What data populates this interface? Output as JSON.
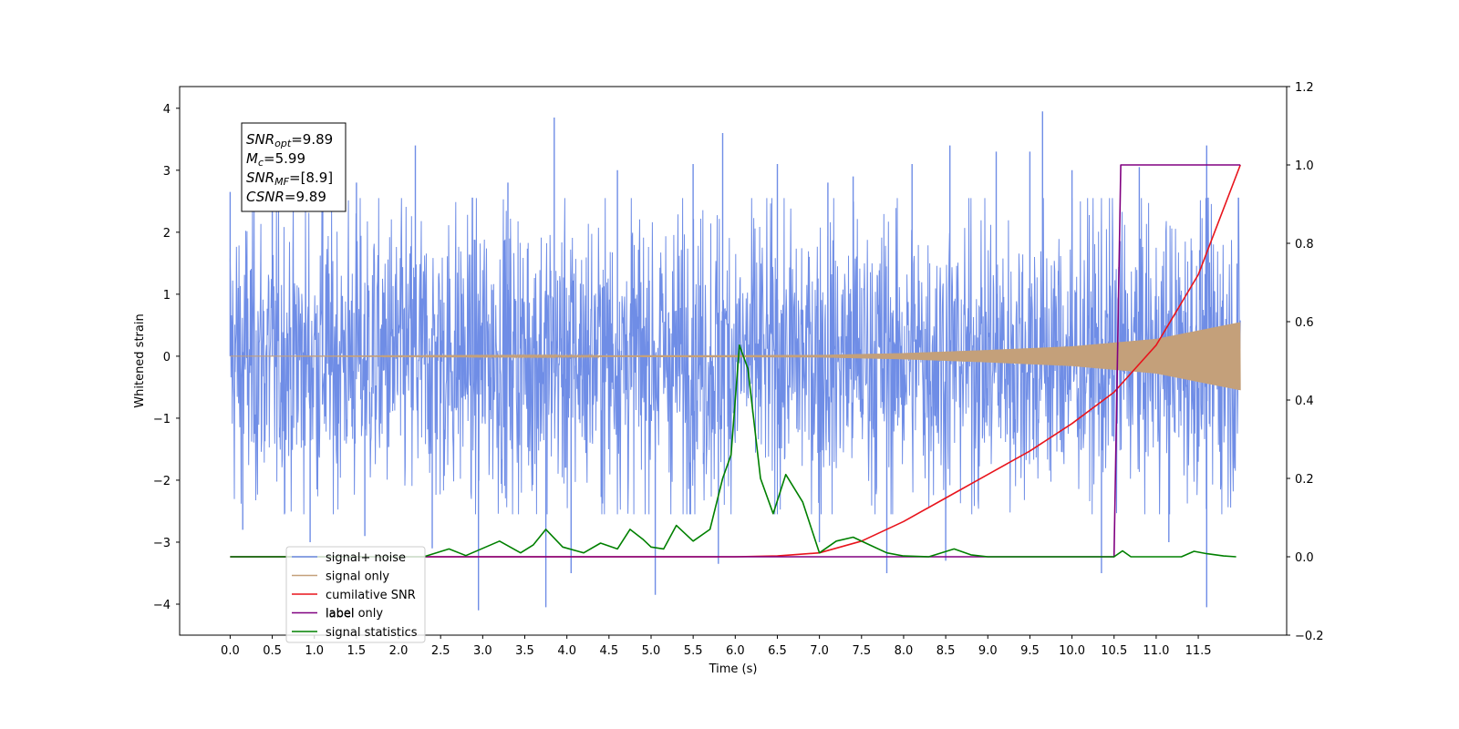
{
  "chart_data": {
    "type": "line",
    "xlabel": "Time (s)",
    "ylabel": "Whitened strain",
    "xlim": [
      -0.6,
      12.55
    ],
    "ylim": [
      -4.5,
      4.35
    ],
    "y2lim": [
      -0.2,
      1.2
    ],
    "x_ticks": [
      "0.0",
      "0.5",
      "1.0",
      "1.5",
      "2.0",
      "2.5",
      "3.0",
      "3.5",
      "4.0",
      "4.5",
      "5.0",
      "5.5",
      "6.0",
      "6.5",
      "7.0",
      "7.5",
      "8.0",
      "8.5",
      "9.0",
      "9.5",
      "10.0",
      "10.5",
      "11.0",
      "11.5"
    ],
    "y_ticks": [
      "4",
      "3",
      "2",
      "1",
      "0",
      "−1",
      "−2",
      "−3",
      "−4"
    ],
    "y2_ticks": [
      "1.2",
      "1.0",
      "0.8",
      "0.6",
      "0.4",
      "0.2",
      "0.0",
      "−0.2"
    ],
    "grid": false,
    "legend_position": "lower-left",
    "annotation": {
      "lines": [
        {
          "sym": "SNR",
          "sub": "opt",
          "value": "=9.89"
        },
        {
          "sym": "M",
          "sub": "c",
          "value": "=5.99"
        },
        {
          "sym": "SNR",
          "sub": "MF",
          "value": "=[8.9]"
        },
        {
          "sym": "CSNR",
          "sub": "",
          "value": "=9.89"
        }
      ]
    },
    "series": [
      {
        "name": "signal+ noise",
        "color": "#6f8de6",
        "axis": "left",
        "kind": "noise",
        "x_range": [
          0.0,
          12.0
        ],
        "envelope": 2.0,
        "spikes": [
          [
            0.0,
            2.65
          ],
          [
            0.15,
            -2.8
          ],
          [
            0.5,
            2.7
          ],
          [
            0.95,
            -3.0
          ],
          [
            1.1,
            2.75
          ],
          [
            1.5,
            2.8
          ],
          [
            1.6,
            -2.9
          ],
          [
            2.2,
            3.4
          ],
          [
            2.4,
            -3.1
          ],
          [
            2.95,
            -4.1
          ],
          [
            3.3,
            2.8
          ],
          [
            3.75,
            -4.05
          ],
          [
            3.85,
            3.85
          ],
          [
            4.05,
            -3.5
          ],
          [
            4.6,
            3.0
          ],
          [
            5.05,
            -3.85
          ],
          [
            5.5,
            3.1
          ],
          [
            5.85,
            3.6
          ],
          [
            5.8,
            -3.35
          ],
          [
            6.5,
            3.1
          ],
          [
            7.0,
            -3.0
          ],
          [
            7.1,
            2.8
          ],
          [
            7.4,
            2.9
          ],
          [
            7.8,
            -3.5
          ],
          [
            8.1,
            3.1
          ],
          [
            8.5,
            -3.3
          ],
          [
            8.55,
            3.4
          ],
          [
            9.1,
            3.3
          ],
          [
            9.5,
            3.3
          ],
          [
            9.65,
            3.95
          ],
          [
            10.0,
            3.0
          ],
          [
            10.35,
            -3.5
          ],
          [
            10.8,
            3.05
          ],
          [
            11.15,
            -3.0
          ],
          [
            11.6,
            3.4
          ],
          [
            11.6,
            -4.05
          ]
        ]
      },
      {
        "name": "signal only",
        "color": "#c4a07a",
        "axis": "left",
        "kind": "chirp",
        "x_range": [
          0.0,
          12.0
        ],
        "amplitude_at": [
          [
            0.0,
            0.0
          ],
          [
            7.0,
            0.02
          ],
          [
            8.0,
            0.05
          ],
          [
            9.0,
            0.1
          ],
          [
            10.0,
            0.16
          ],
          [
            11.0,
            0.28
          ],
          [
            12.0,
            0.55
          ]
        ]
      },
      {
        "name": "cumilative SNR",
        "color": "#e8141c",
        "axis": "right",
        "x": [
          0.0,
          6.0,
          6.5,
          7.0,
          7.5,
          8.0,
          8.5,
          9.0,
          9.5,
          10.0,
          10.5,
          11.0,
          11.5,
          12.0
        ],
        "y": [
          0.0,
          0.0,
          0.002,
          0.01,
          0.04,
          0.09,
          0.15,
          0.21,
          0.27,
          0.34,
          0.42,
          0.54,
          0.72,
          1.0
        ]
      },
      {
        "name": "label",
        "color": "#800080",
        "axis": "right",
        "x": [
          0.0,
          10.5,
          10.58,
          12.0
        ],
        "y": [
          0.0,
          0.0,
          1.0,
          1.0
        ]
      },
      {
        "name": "signal statistics",
        "color": "#008000",
        "axis": "right",
        "x": [
          0.0,
          2.3,
          2.6,
          2.8,
          3.2,
          3.45,
          3.6,
          3.75,
          3.95,
          4.2,
          4.4,
          4.6,
          4.75,
          4.9,
          5.0,
          5.15,
          5.3,
          5.5,
          5.7,
          5.85,
          5.95,
          6.05,
          6.15,
          6.3,
          6.45,
          6.6,
          6.8,
          7.0,
          7.2,
          7.4,
          7.6,
          7.8,
          8.0,
          8.3,
          8.6,
          8.8,
          9.0,
          10.5,
          10.6,
          10.7,
          11.0,
          11.3,
          11.45,
          11.6,
          11.8,
          11.95
        ],
        "y": [
          0.0,
          0.0,
          0.02,
          0.003,
          0.04,
          0.01,
          0.03,
          0.07,
          0.025,
          0.01,
          0.035,
          0.02,
          0.07,
          0.045,
          0.025,
          0.02,
          0.08,
          0.04,
          0.07,
          0.2,
          0.26,
          0.54,
          0.48,
          0.2,
          0.11,
          0.21,
          0.14,
          0.01,
          0.04,
          0.05,
          0.03,
          0.01,
          0.002,
          0.0,
          0.02,
          0.005,
          0.0,
          0.0,
          0.015,
          0.0,
          0.0,
          0.0,
          0.014,
          0.008,
          0.002,
          0.0
        ]
      }
    ]
  },
  "legend": {
    "ghost_label": "label only"
  }
}
